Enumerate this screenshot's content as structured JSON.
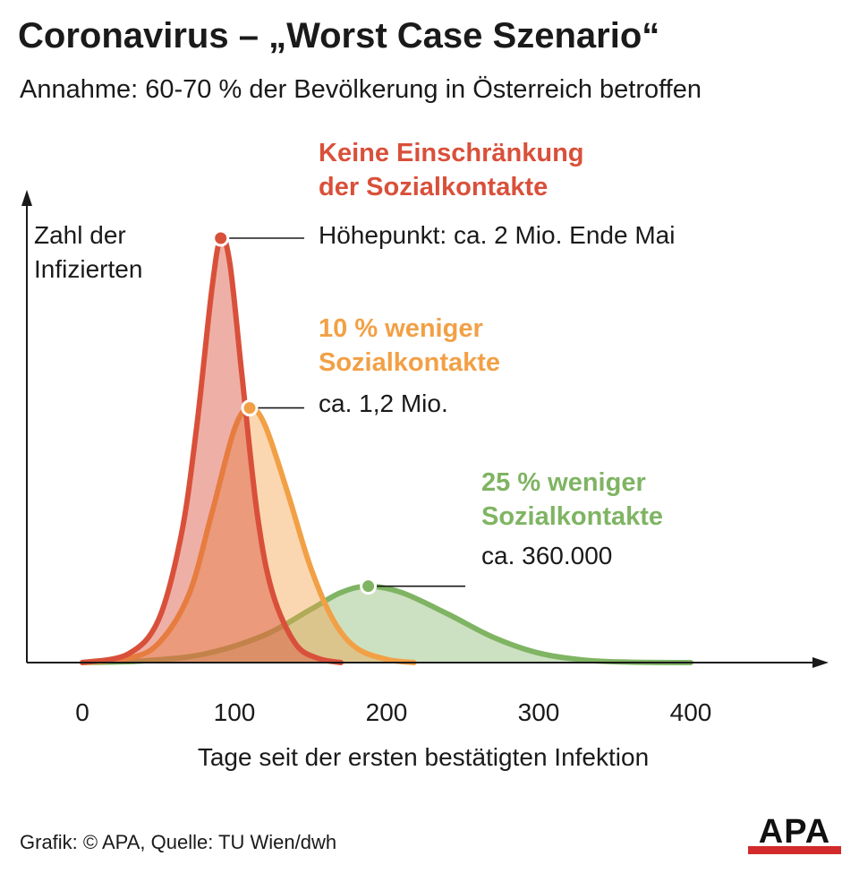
{
  "title": "Coronavirus – „Worst Case Szenario“",
  "subtitle": "Annahme: 60-70 % der Bevölkerung in Österreich betroffen",
  "credit": "Grafik: © APA, Quelle: TU Wien/dwh",
  "logo_text": "APA",
  "colors": {
    "red": "#d9503a",
    "orange": "#f2a046",
    "green": "#7fb463",
    "axis": "#1a1a1a"
  },
  "chart_data": {
    "type": "area",
    "xlabel": "Tage seit der ersten bestätigten Infektion",
    "ylabel": "Zahl der Infizierten",
    "xlim": [
      0,
      480
    ],
    "xticks": [
      "0",
      "100",
      "200",
      "300",
      "400"
    ],
    "xtick_values": [
      0,
      100,
      200,
      300,
      400
    ],
    "series": [
      {
        "name": "Keine Einschränkung der Sozialkontakte",
        "name_line1": "Keine Einschränkung",
        "name_line2": "der Sozialkontakte",
        "annotation": "Höhepunkt: ca. 2 Mio. Ende Mai",
        "color": "#d9503a",
        "peak_day": 91,
        "peak_value": 2000000,
        "x": [
          0,
          30,
          50,
          65,
          75,
          85,
          91,
          97,
          105,
          115,
          125,
          140,
          155,
          170
        ],
        "y": [
          0,
          40000,
          200000,
          600000,
          1100000,
          1750000,
          2000000,
          1880000,
          1350000,
          700000,
          330000,
          90000,
          20000,
          0
        ]
      },
      {
        "name": "10 % weniger Sozialkontakte",
        "name_line1": "10 % weniger",
        "name_line2": "Sozialkontakte",
        "annotation": "ca. 1,2 Mio.",
        "color": "#f2a046",
        "peak_day": 110,
        "peak_value": 1200000,
        "x": [
          0,
          30,
          50,
          70,
          85,
          100,
          110,
          120,
          135,
          150,
          165,
          180,
          200,
          218
        ],
        "y": [
          0,
          20000,
          90000,
          320000,
          700000,
          1100000,
          1200000,
          1120000,
          800000,
          450000,
          200000,
          70000,
          15000,
          0
        ]
      },
      {
        "name": "25 % weniger Sozialkontakte",
        "name_line1": "25 % weniger",
        "name_line2": "Sozialkontakte",
        "annotation": "ca. 360.000",
        "color": "#7fb463",
        "peak_day": 188,
        "peak_value": 360000,
        "x": [
          0,
          40,
          80,
          120,
          150,
          170,
          188,
          210,
          240,
          270,
          300,
          330,
          360,
          400
        ],
        "y": [
          0,
          8000,
          40000,
          130000,
          250000,
          330000,
          360000,
          330000,
          230000,
          120000,
          45000,
          12000,
          2000,
          0
        ]
      }
    ]
  }
}
